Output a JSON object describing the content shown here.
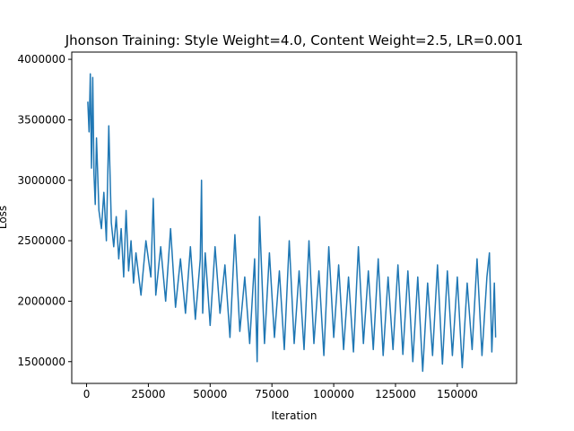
{
  "chart_data": {
    "type": "line",
    "title": "Jhonson Training: Style Weight=4.0, Content Weight=2.5, LR=0.001",
    "xlabel": "Iteration",
    "ylabel": "Loss",
    "xlim": [
      -6000,
      174000
    ],
    "ylim": [
      1320000,
      4060000
    ],
    "x_ticks": [
      {
        "value": 0,
        "label": "0"
      },
      {
        "value": 25000,
        "label": "25000"
      },
      {
        "value": 50000,
        "label": "50000"
      },
      {
        "value": 75000,
        "label": "75000"
      },
      {
        "value": 100000,
        "label": "100000"
      },
      {
        "value": 125000,
        "label": "125000"
      },
      {
        "value": 150000,
        "label": "150000"
      }
    ],
    "y_ticks": [
      {
        "value": 1500000,
        "label": "1500000"
      },
      {
        "value": 2000000,
        "label": "2000000"
      },
      {
        "value": 2500000,
        "label": "2500000"
      },
      {
        "value": 3000000,
        "label": "3000000"
      },
      {
        "value": 3500000,
        "label": "3500000"
      },
      {
        "value": 4000000,
        "label": "4000000"
      }
    ],
    "grid": false,
    "legend": "none",
    "series": [
      {
        "color": "#1f77b4",
        "x": [
          500,
          1000,
          1500,
          2000,
          2500,
          3000,
          3500,
          4000,
          5000,
          6000,
          7000,
          8000,
          9000,
          10000,
          11000,
          12000,
          13000,
          14000,
          15000,
          16000,
          17000,
          18000,
          19000,
          20000,
          22000,
          24000,
          26000,
          27000,
          28000,
          30000,
          32000,
          34000,
          36000,
          38000,
          40000,
          42000,
          44000,
          46000,
          46500,
          47000,
          48000,
          50000,
          52000,
          54000,
          56000,
          58000,
          60000,
          62000,
          64000,
          66000,
          68000,
          69000,
          70000,
          72000,
          74000,
          76000,
          78000,
          80000,
          82000,
          84000,
          86000,
          88000,
          90000,
          92000,
          94000,
          96000,
          98000,
          100000,
          102000,
          104000,
          106000,
          108000,
          110000,
          112000,
          114000,
          116000,
          118000,
          120000,
          122000,
          124000,
          126000,
          128000,
          130000,
          132000,
          134000,
          136000,
          138000,
          140000,
          142000,
          144000,
          146000,
          148000,
          150000,
          152000,
          154000,
          156000,
          158000,
          160000,
          162000,
          163000,
          164000,
          165000,
          165500
        ],
        "values": [
          3650000,
          3400000,
          3880000,
          3100000,
          3850000,
          3050000,
          2800000,
          3350000,
          2750000,
          2600000,
          2900000,
          2500000,
          3450000,
          2650000,
          2450000,
          2700000,
          2350000,
          2600000,
          2200000,
          2750000,
          2250000,
          2500000,
          2150000,
          2400000,
          2050000,
          2500000,
          2200000,
          2850000,
          2050000,
          2450000,
          2000000,
          2600000,
          1950000,
          2350000,
          1900000,
          2450000,
          1850000,
          2350000,
          3000000,
          1900000,
          2400000,
          1800000,
          2450000,
          1900000,
          2300000,
          1700000,
          2550000,
          1750000,
          2200000,
          1650000,
          2350000,
          1500000,
          2700000,
          1650000,
          2400000,
          1700000,
          2250000,
          1600000,
          2500000,
          1650000,
          2250000,
          1600000,
          2500000,
          1650000,
          2250000,
          1550000,
          2450000,
          1700000,
          2300000,
          1600000,
          2200000,
          1580000,
          2450000,
          1650000,
          2250000,
          1600000,
          2350000,
          1550000,
          2200000,
          1600000,
          2300000,
          1560000,
          2250000,
          1500000,
          2200000,
          1420000,
          2150000,
          1550000,
          2300000,
          1480000,
          2250000,
          1550000,
          2200000,
          1450000,
          2150000,
          1600000,
          2350000,
          1550000,
          2200000,
          2400000,
          1580000,
          2150000,
          1700000
        ]
      }
    ]
  }
}
